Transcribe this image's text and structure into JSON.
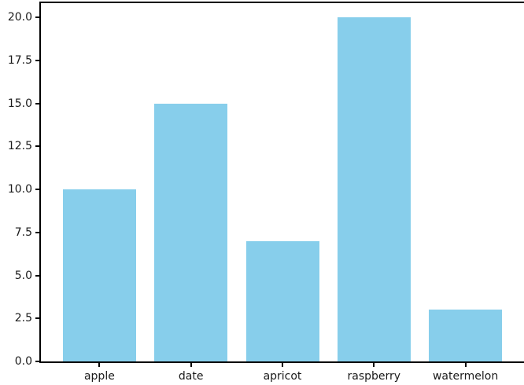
{
  "chart_data": {
    "type": "bar",
    "title": "",
    "xlabel": "",
    "ylabel": "",
    "categories": [
      "apple",
      "date",
      "apricot",
      "raspberry",
      "watermelon"
    ],
    "values": [
      10,
      15,
      7,
      20,
      3
    ],
    "ytick_labels": [
      "0.0",
      "2.5",
      "5.0",
      "7.5",
      "10.0",
      "12.5",
      "15.0",
      "17.5",
      "20.0"
    ],
    "ytick_values": [
      0,
      2.5,
      5,
      7.5,
      10,
      12.5,
      15,
      17.5,
      20
    ],
    "ylim": [
      0,
      20.9
    ],
    "xlim": [
      -0.64,
      4.64
    ],
    "bar_width": 0.8,
    "grid": false,
    "legend": null,
    "bar_color": "#87CEEB",
    "axis_color": "#000000",
    "text_color": "#1a1a1a",
    "background_color": "#ffffff"
  }
}
